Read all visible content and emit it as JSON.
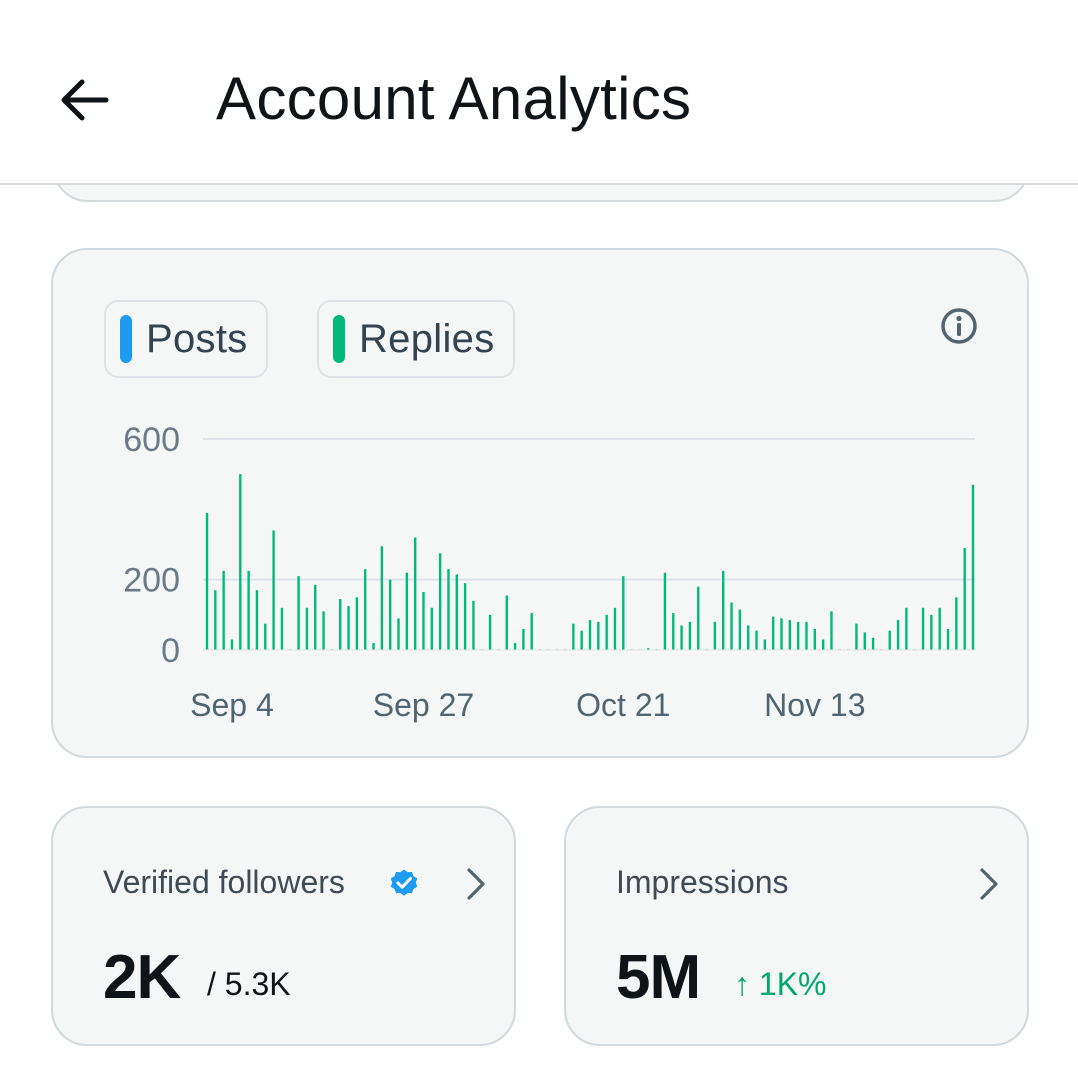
{
  "header": {
    "title": "Account Analytics",
    "back_icon": "arrow-left-icon"
  },
  "chart": {
    "legend": [
      {
        "label": "Posts",
        "color": "#1d9bf0"
      },
      {
        "label": "Replies",
        "color": "#00ba7c"
      }
    ],
    "info_icon": "info-icon"
  },
  "chart_data": {
    "type": "bar",
    "title": "",
    "xlabel": "",
    "ylabel": "",
    "ylim": [
      0,
      600
    ],
    "yticks": [
      0,
      200,
      600
    ],
    "gridlines": [
      200,
      600
    ],
    "grid": true,
    "legend_placement": "top-left",
    "xtick_labels": [
      {
        "label": "Sep 4",
        "day": 3
      },
      {
        "label": "Sep 27",
        "day": 26
      },
      {
        "label": "Oct 21",
        "day": 50
      },
      {
        "label": "Nov 13",
        "day": 73
      }
    ],
    "series": [
      {
        "name": "Posts",
        "color": "#1d9bf0",
        "values": []
      },
      {
        "name": "Replies",
        "color": "#00ba7c",
        "values": [
          390,
          170,
          225,
          30,
          500,
          225,
          170,
          75,
          340,
          120,
          2,
          210,
          120,
          185,
          110,
          2,
          145,
          125,
          150,
          230,
          20,
          295,
          200,
          90,
          220,
          320,
          165,
          120,
          275,
          230,
          215,
          190,
          140,
          2,
          100,
          2,
          155,
          20,
          60,
          105,
          2,
          2,
          2,
          2,
          75,
          55,
          85,
          80,
          100,
          120,
          210,
          2,
          2,
          5,
          2,
          220,
          105,
          70,
          80,
          180,
          2,
          80,
          225,
          135,
          115,
          70,
          55,
          30,
          95,
          90,
          85,
          80,
          80,
          60,
          30,
          110,
          2,
          2,
          75,
          50,
          35,
          2,
          55,
          85,
          120,
          2,
          120,
          100,
          120,
          60,
          150,
          290,
          470
        ]
      }
    ]
  },
  "stats": [
    {
      "label": "Verified followers",
      "value": "2K",
      "sub": "/ 5.3K",
      "label_icon": "verified-badge-icon",
      "chevron_icon": "chevron-right-icon"
    },
    {
      "label": "Impressions",
      "value": "5M",
      "change": "↑ 1K%",
      "chevron_icon": "chevron-right-icon"
    }
  ]
}
